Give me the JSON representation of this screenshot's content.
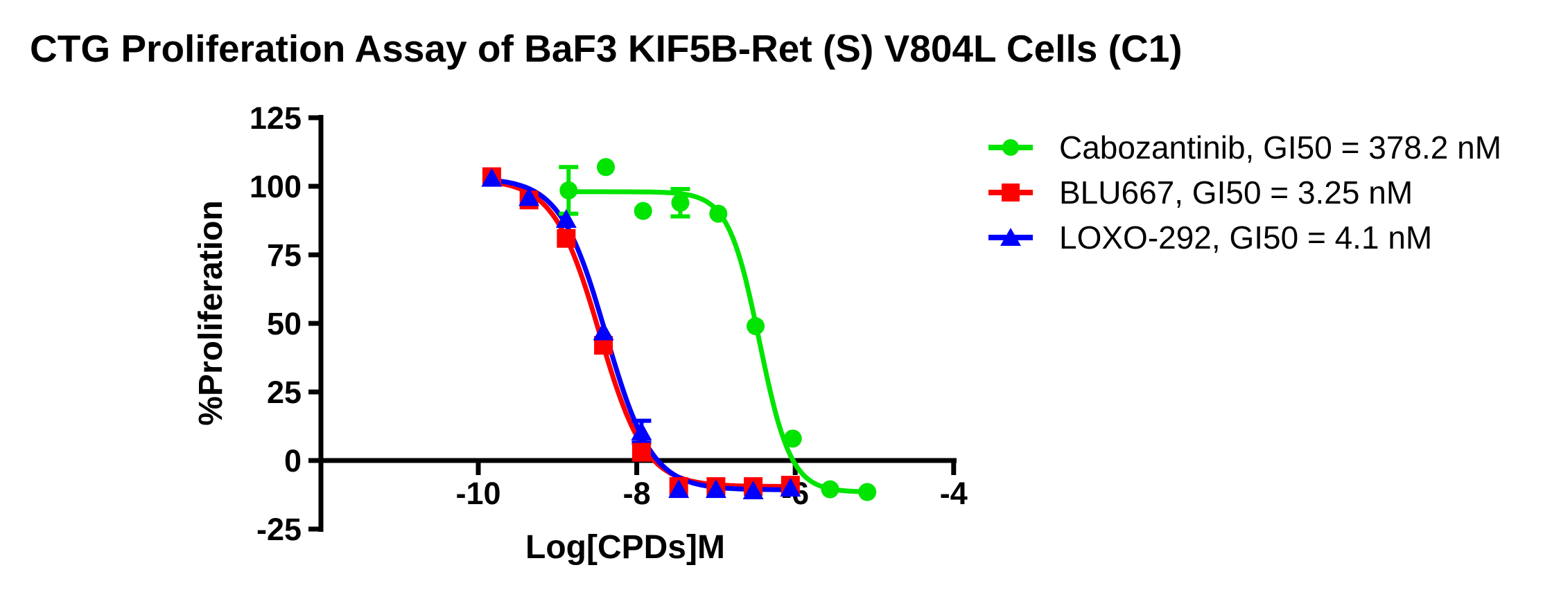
{
  "chart_data": {
    "type": "scatter",
    "title": "CTG Proliferation Assay of BaF3 KIF5B-Ret (S) V804L Cells (C1)",
    "xlabel": "Log[CPDs]M",
    "ylabel": "%Proliferation",
    "xlim": [
      -12,
      -4
    ],
    "ylim": [
      -25,
      125
    ],
    "x_ticks": [
      -10,
      -8,
      -6,
      -4
    ],
    "y_ticks": [
      125,
      100,
      75,
      50,
      25,
      0,
      -25
    ],
    "grid": false,
    "legend_position": "right",
    "axis_color": "#000000",
    "series": [
      {
        "name": "Cabozantinib",
        "legend_label": "Cabozantinib, GI50 = 378.2 nM",
        "color": "#00E400",
        "marker": "circle",
        "points": [
          {
            "x": -8.86,
            "y": 98.5,
            "err": 8.5
          },
          {
            "x": -8.39,
            "y": 107
          },
          {
            "x": -7.92,
            "y": 91
          },
          {
            "x": -7.45,
            "y": 94,
            "err": 5
          },
          {
            "x": -6.97,
            "y": 90
          },
          {
            "x": -6.5,
            "y": 49
          },
          {
            "x": -6.03,
            "y": 8
          },
          {
            "x": -5.56,
            "y": -10.5
          },
          {
            "x": -5.09,
            "y": -11.5
          }
        ],
        "fit": {
          "top": 98,
          "bottom": -11.5,
          "logec50": -6.45,
          "hill": 2.2
        }
      },
      {
        "name": "BLU667",
        "legend_label": "BLU667, GI50 = 3.25 nM",
        "color": "#FF0000",
        "marker": "square",
        "points": [
          {
            "x": -9.83,
            "y": 103.5
          },
          {
            "x": -9.36,
            "y": 95
          },
          {
            "x": -8.89,
            "y": 81
          },
          {
            "x": -8.42,
            "y": 42
          },
          {
            "x": -7.94,
            "y": 3
          },
          {
            "x": -7.47,
            "y": -9.5
          },
          {
            "x": -7.0,
            "y": -9.5
          },
          {
            "x": -6.53,
            "y": -9.5
          },
          {
            "x": -6.06,
            "y": -9
          }
        ],
        "fit": {
          "top": 102.5,
          "bottom": -9.5,
          "logec50": -8.47,
          "hill": 1.5
        }
      },
      {
        "name": "LOXO-292",
        "legend_label": "LOXO-292, GI50 = 4.1 nM",
        "color": "#0000FF",
        "marker": "triangle",
        "points": [
          {
            "x": -9.83,
            "y": 103
          },
          {
            "x": -9.36,
            "y": 96
          },
          {
            "x": -8.89,
            "y": 88
          },
          {
            "x": -8.42,
            "y": 47
          },
          {
            "x": -7.94,
            "y": 10.5,
            "err": 4
          },
          {
            "x": -7.47,
            "y": -10.5
          },
          {
            "x": -7.0,
            "y": -10.5
          },
          {
            "x": -6.53,
            "y": -11
          },
          {
            "x": -6.06,
            "y": -10
          }
        ],
        "fit": {
          "top": 103,
          "bottom": -10.7,
          "logec50": -8.39,
          "hill": 1.5
        }
      }
    ]
  }
}
